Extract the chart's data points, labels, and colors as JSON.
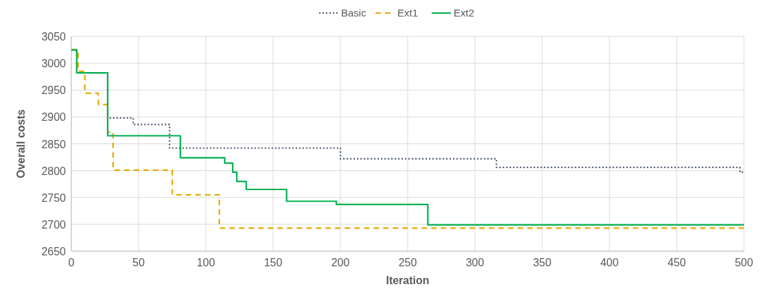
{
  "chart_data": {
    "type": "step",
    "xlabel": "Iteration",
    "ylabel": "Overall costs",
    "xlim": [
      0,
      500
    ],
    "xticks": [
      0,
      50,
      100,
      150,
      200,
      250,
      300,
      350,
      400,
      450,
      500
    ],
    "ylim": [
      2650,
      3050
    ],
    "yticks": [
      2650,
      2700,
      2750,
      2800,
      2850,
      2900,
      2950,
      3000,
      3050
    ],
    "grid": true,
    "legend": "top",
    "series": [
      {
        "name": "Basic",
        "color": "#44546a",
        "line_style": "dotted",
        "x": [
          0,
          4,
          27,
          46,
          73,
          200,
          316,
          497,
          500
        ],
        "values": [
          3025,
          2982,
          2898,
          2886,
          2842,
          2822,
          2806,
          2797,
          2797
        ]
      },
      {
        "name": "Ext1",
        "color": "#e6a800",
        "line_style": "dashed",
        "x": [
          0,
          5,
          10,
          20,
          27,
          31,
          75,
          110,
          500
        ],
        "values": [
          3025,
          2985,
          2944,
          2923,
          2872,
          2801,
          2755,
          2693,
          2693
        ]
      },
      {
        "name": "Ext2",
        "color": "#00b050",
        "line_style": "solid",
        "x": [
          0,
          4,
          27,
          81,
          114,
          120,
          123,
          130,
          160,
          197,
          265,
          500
        ],
        "values": [
          3025,
          2982,
          2865,
          2824,
          2814,
          2797,
          2780,
          2765,
          2743,
          2737,
          2699,
          2699
        ]
      }
    ]
  }
}
